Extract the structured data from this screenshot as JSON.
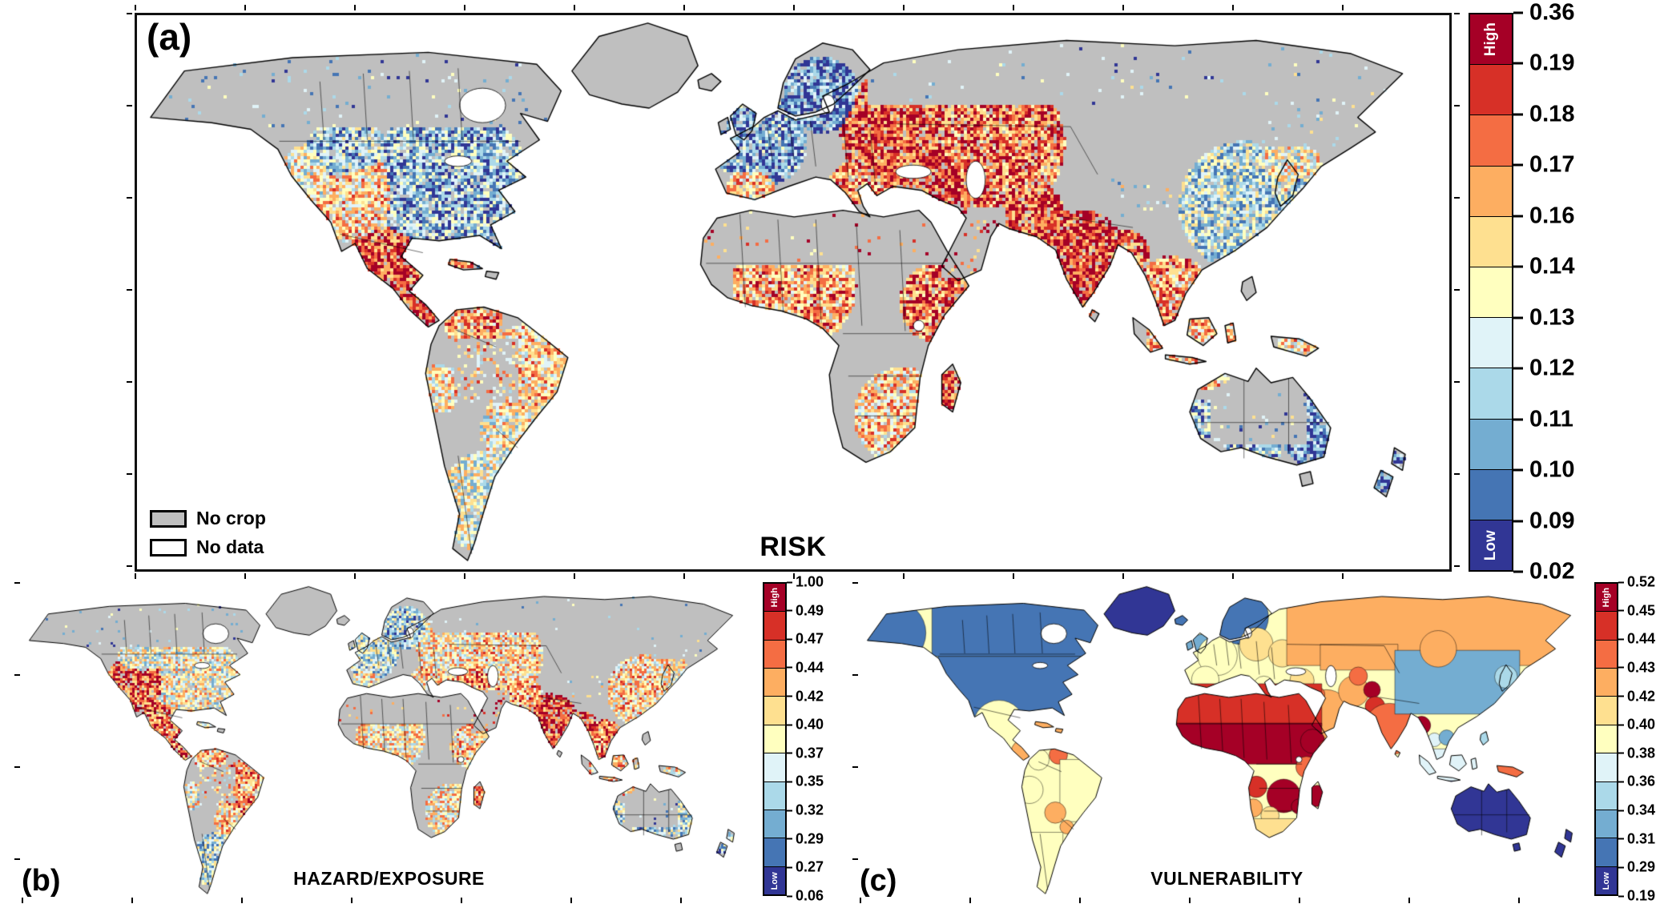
{
  "figure": {
    "background": "#ffffff",
    "palette": [
      "#a50026",
      "#d73027",
      "#f46d43",
      "#fdae61",
      "#fee090",
      "#ffffbf",
      "#e0f3f8",
      "#abd9e9",
      "#74add1",
      "#4575b4",
      "#313695"
    ],
    "map_colors": {
      "no_crop": "#bfbfbf",
      "no_data": "#ffffff",
      "outline": "#000000",
      "ocean": "#ffffff"
    },
    "panels": [
      {
        "id": "a",
        "label": "(a)",
        "title": "RISK",
        "legend": [
          {
            "label": "No crop"
          },
          {
            "label": "No data"
          }
        ],
        "colorbar": {
          "high_label": "High",
          "low_label": "Low",
          "ticks": [
            "0.36",
            "0.19",
            "0.18",
            "0.17",
            "0.16",
            "0.14",
            "0.13",
            "0.12",
            "0.11",
            "0.10",
            "0.09",
            "0.02"
          ]
        }
      },
      {
        "id": "b",
        "label": "(b)",
        "title": "HAZARD/EXPOSURE",
        "colorbar": {
          "high_label": "High",
          "low_label": "Low",
          "ticks": [
            "1.00",
            "0.49",
            "0.47",
            "0.44",
            "0.42",
            "0.40",
            "0.37",
            "0.35",
            "0.32",
            "0.29",
            "0.27",
            "0.06"
          ]
        }
      },
      {
        "id": "c",
        "label": "(c)",
        "title": "VULNERABILITY",
        "colorbar": {
          "high_label": "High",
          "low_label": "Low",
          "ticks": [
            "0.52",
            "0.45",
            "0.44",
            "0.43",
            "0.42",
            "0.40",
            "0.38",
            "0.36",
            "0.34",
            "0.31",
            "0.29",
            "0.19"
          ]
        }
      }
    ]
  }
}
